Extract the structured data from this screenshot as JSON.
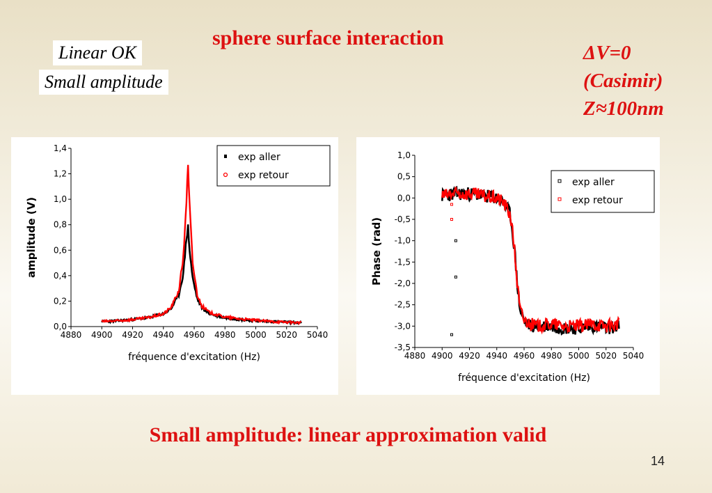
{
  "slide": {
    "title": "sphere surface interaction",
    "tag_linear": "Linear OK",
    "tag_small": "Small amplitude",
    "param_dv": "ΔV=0",
    "param_casimir": "(Casimir)",
    "param_z": "Z≈100nm",
    "bottom_text": "Small amplitude: linear approximation valid",
    "page_number": "14"
  },
  "colors": {
    "accent_red": "#dd1111",
    "series_aller": "#000000",
    "series_retour": "#ff0000"
  },
  "chart_data": [
    {
      "type": "line",
      "xlabel": "fréquence d'excitation (Hz)",
      "ylabel": "amplitude (V)",
      "xlim": [
        4880,
        5040
      ],
      "ylim": [
        0,
        1.4
      ],
      "x_ticks": [
        "4880",
        "4900",
        "4920",
        "4940",
        "4960",
        "4980",
        "5000",
        "5020",
        "5040"
      ],
      "y_ticks": [
        "0,0",
        "0,2",
        "0,4",
        "0,6",
        "0,8",
        "1,0",
        "1,2",
        "1,4"
      ],
      "legend": "top-right",
      "series": [
        {
          "name": "exp aller",
          "x": [
            4900,
            4910,
            4920,
            4930,
            4940,
            4945,
            4950,
            4953,
            4955,
            4956,
            4957,
            4959,
            4962,
            4965,
            4970,
            4980,
            4990,
            5000,
            5010,
            5020,
            5030
          ],
          "values": [
            0.04,
            0.045,
            0.055,
            0.07,
            0.1,
            0.14,
            0.25,
            0.42,
            0.7,
            0.78,
            0.6,
            0.38,
            0.22,
            0.15,
            0.1,
            0.07,
            0.055,
            0.045,
            0.04,
            0.035,
            0.03
          ]
        },
        {
          "name": "exp retour",
          "x": [
            4900,
            4910,
            4920,
            4930,
            4940,
            4945,
            4950,
            4953,
            4955,
            4956,
            4957,
            4959,
            4962,
            4965,
            4970,
            4980,
            4990,
            5000,
            5010,
            5020,
            5030
          ],
          "values": [
            0.04,
            0.045,
            0.055,
            0.07,
            0.1,
            0.15,
            0.28,
            0.55,
            1.0,
            1.24,
            0.95,
            0.5,
            0.25,
            0.16,
            0.11,
            0.075,
            0.06,
            0.05,
            0.04,
            0.035,
            0.03
          ]
        }
      ]
    },
    {
      "type": "scatter",
      "xlabel": "fréquence d'excitation (Hz)",
      "ylabel": "Phase (rad)",
      "xlim": [
        4880,
        5040
      ],
      "ylim": [
        -3.5,
        1.0
      ],
      "x_ticks": [
        "4880",
        "4900",
        "4920",
        "4940",
        "4960",
        "4980",
        "5000",
        "5020",
        "5040"
      ],
      "y_ticks": [
        "-3,5",
        "-3,0",
        "-2,5",
        "-2,0",
        "-1,5",
        "-1,0",
        "-0,5",
        "0,0",
        "0,5",
        "1,0"
      ],
      "legend": "top-right",
      "series": [
        {
          "name": "exp aller",
          "x": [
            4900,
            4910,
            4920,
            4930,
            4940,
            4945,
            4950,
            4953,
            4955,
            4957,
            4960,
            4965,
            4970,
            4980,
            4990,
            5000,
            5010,
            5020,
            5030
          ],
          "values": [
            0.05,
            0.1,
            0.1,
            0.05,
            0.0,
            -0.1,
            -0.4,
            -1.2,
            -2.0,
            -2.6,
            -2.9,
            -3.0,
            -3.0,
            -3.0,
            -3.05,
            -3.05,
            -3.0,
            -3.05,
            -3.0
          ]
        },
        {
          "name": "exp retour",
          "x": [
            4900,
            4910,
            4920,
            4930,
            4940,
            4945,
            4950,
            4953,
            4955,
            4957,
            4960,
            4965,
            4970,
            4980,
            4990,
            5000,
            5010,
            5020,
            5030
          ],
          "values": [
            0.05,
            0.1,
            0.1,
            0.05,
            0.0,
            -0.1,
            -0.4,
            -1.2,
            -2.0,
            -2.6,
            -2.85,
            -2.95,
            -3.0,
            -2.95,
            -3.0,
            -3.0,
            -2.95,
            -3.0,
            -2.95
          ]
        }
      ],
      "outliers": [
        {
          "x": 4907,
          "y": -3.2
        },
        {
          "x": 4910,
          "y": -1.0
        },
        {
          "x": 4910,
          "y": -1.85
        },
        {
          "x": 4907,
          "y": -0.15
        },
        {
          "x": 4907,
          "y": -0.5
        }
      ]
    }
  ]
}
